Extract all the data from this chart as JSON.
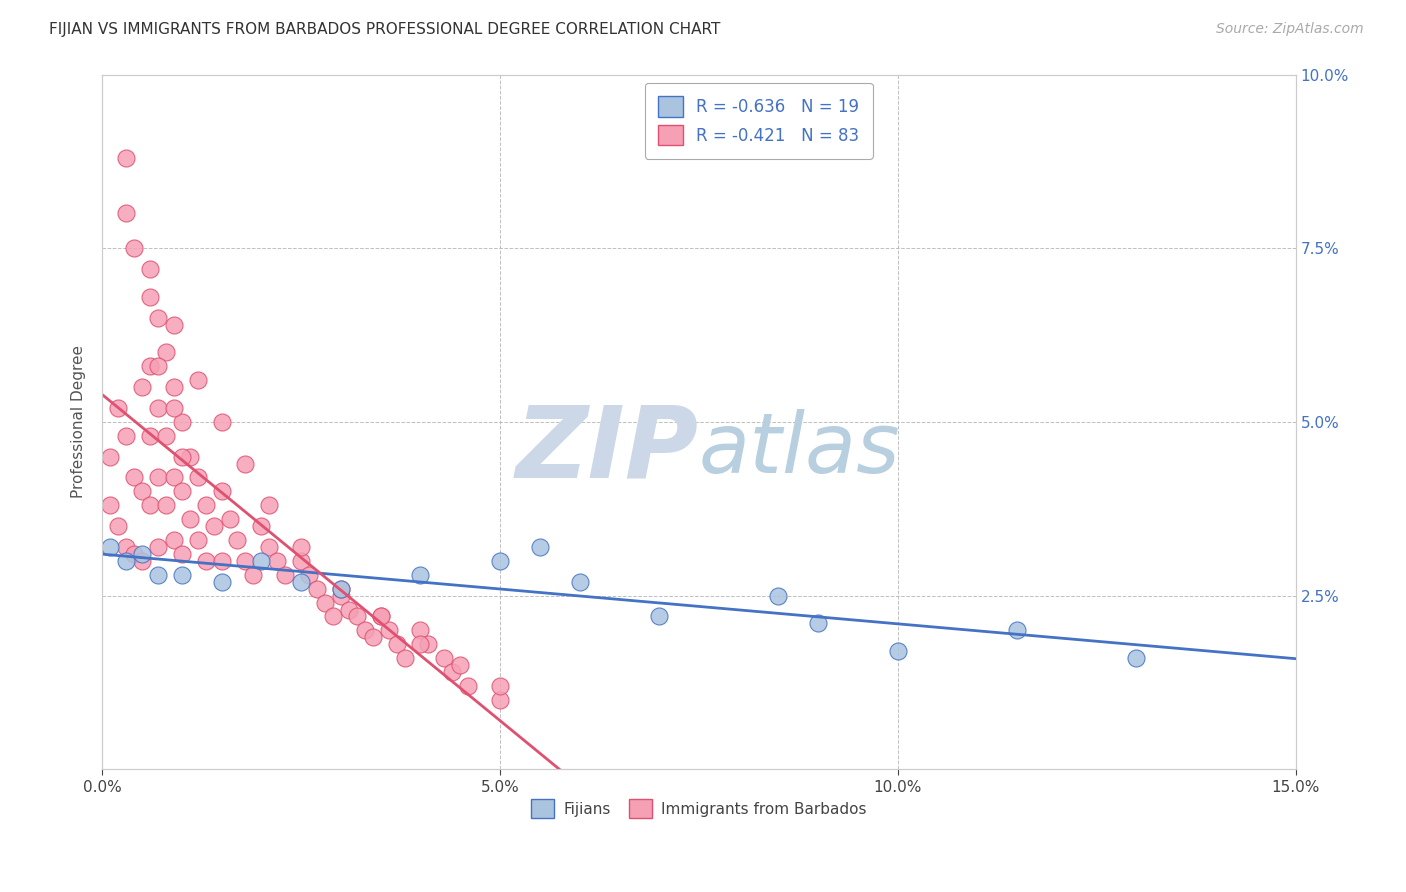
{
  "title": "FIJIAN VS IMMIGRANTS FROM BARBADOS PROFESSIONAL DEGREE CORRELATION CHART",
  "source": "Source: ZipAtlas.com",
  "ylabel": "Professional Degree",
  "xlim": [
    0,
    0.15
  ],
  "ylim": [
    0,
    0.1
  ],
  "fijians_color": "#aac4e0",
  "barbados_color": "#f5a0b5",
  "fijians_edge": "#4472c4",
  "barbados_edge": "#e05070",
  "trend_fijians": "#4472c4",
  "trend_barbados": "#e05070",
  "legend_R_fijians": "-0.636",
  "legend_N_fijians": "19",
  "legend_R_barbados": "-0.421",
  "legend_N_barbados": "83",
  "background_color": "#ffffff",
  "grid_color": "#b0b0b0",
  "watermark_color": "#ccd8e8",
  "fijians_x": [
    0.001,
    0.003,
    0.005,
    0.007,
    0.01,
    0.015,
    0.02,
    0.025,
    0.03,
    0.04,
    0.05,
    0.055,
    0.06,
    0.07,
    0.085,
    0.09,
    0.1,
    0.115,
    0.13
  ],
  "fijians_y": [
    0.032,
    0.03,
    0.031,
    0.028,
    0.028,
    0.027,
    0.03,
    0.027,
    0.026,
    0.028,
    0.03,
    0.032,
    0.027,
    0.022,
    0.025,
    0.021,
    0.017,
    0.02,
    0.016
  ],
  "barbados_x": [
    0.001,
    0.001,
    0.002,
    0.002,
    0.003,
    0.003,
    0.004,
    0.004,
    0.005,
    0.005,
    0.005,
    0.006,
    0.006,
    0.006,
    0.007,
    0.007,
    0.007,
    0.007,
    0.008,
    0.008,
    0.008,
    0.009,
    0.009,
    0.009,
    0.01,
    0.01,
    0.01,
    0.011,
    0.011,
    0.012,
    0.012,
    0.013,
    0.013,
    0.014,
    0.015,
    0.015,
    0.016,
    0.017,
    0.018,
    0.019,
    0.02,
    0.021,
    0.022,
    0.023,
    0.025,
    0.026,
    0.027,
    0.028,
    0.029,
    0.03,
    0.031,
    0.032,
    0.033,
    0.034,
    0.035,
    0.036,
    0.037,
    0.038,
    0.04,
    0.041,
    0.043,
    0.044,
    0.046,
    0.05,
    0.003,
    0.006,
    0.009,
    0.012,
    0.015,
    0.018,
    0.021,
    0.025,
    0.03,
    0.035,
    0.04,
    0.045,
    0.05,
    0.003,
    0.004,
    0.006,
    0.007,
    0.009,
    0.01
  ],
  "barbados_y": [
    0.045,
    0.038,
    0.052,
    0.035,
    0.048,
    0.032,
    0.042,
    0.031,
    0.055,
    0.04,
    0.03,
    0.058,
    0.048,
    0.038,
    0.065,
    0.052,
    0.042,
    0.032,
    0.06,
    0.048,
    0.038,
    0.055,
    0.042,
    0.033,
    0.05,
    0.04,
    0.031,
    0.045,
    0.036,
    0.042,
    0.033,
    0.038,
    0.03,
    0.035,
    0.04,
    0.03,
    0.036,
    0.033,
    0.03,
    0.028,
    0.035,
    0.032,
    0.03,
    0.028,
    0.03,
    0.028,
    0.026,
    0.024,
    0.022,
    0.025,
    0.023,
    0.022,
    0.02,
    0.019,
    0.022,
    0.02,
    0.018,
    0.016,
    0.02,
    0.018,
    0.016,
    0.014,
    0.012,
    0.01,
    0.08,
    0.072,
    0.064,
    0.056,
    0.05,
    0.044,
    0.038,
    0.032,
    0.026,
    0.022,
    0.018,
    0.015,
    0.012,
    0.088,
    0.075,
    0.068,
    0.058,
    0.052,
    0.045
  ]
}
